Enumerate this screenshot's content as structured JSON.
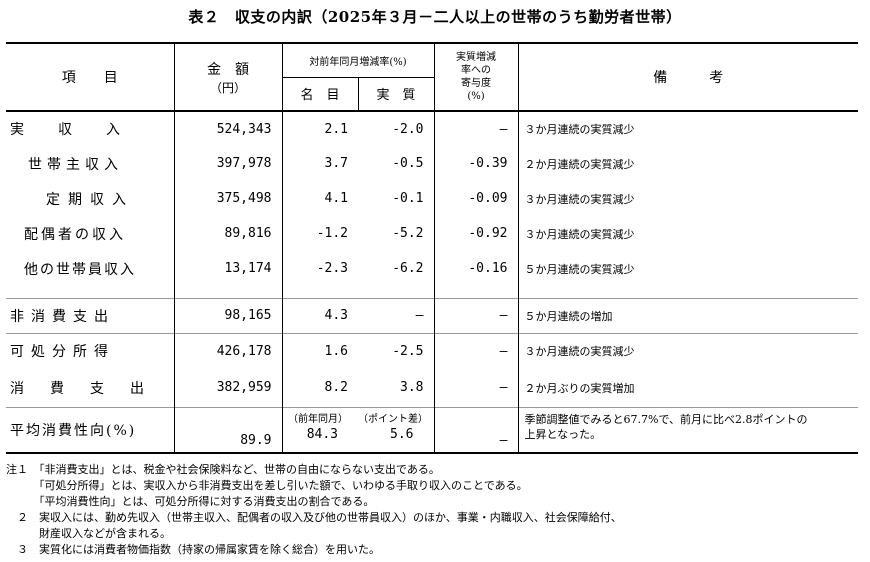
{
  "title": "表２　収支の内訳（2025年３月－二人以上の世帯のうち勤労者世帯）",
  "header": {
    "item": "項　　目",
    "amount": "金　額",
    "amount_unit": "（円）",
    "yoy": "対前年同月増減率(%)",
    "nominal": "名　目",
    "real": "実　質",
    "contrib_1": "実質増減",
    "contrib_2": "率への",
    "contrib_3": "寄与度",
    "contrib_4": "(%)",
    "remarks": "備　　　考"
  },
  "rows": [
    {
      "item": "実　　収　　入",
      "amount": "524,343",
      "nominal": "2.1",
      "real": "-2.0",
      "contrib": "—",
      "remark": "３か月連続の実質減少"
    },
    {
      "item": "世帯主収入",
      "amount": "397,978",
      "nominal": "3.7",
      "real": "-0.5",
      "contrib": "-0.39",
      "remark": "２か月連続の実質減少"
    },
    {
      "item": "定期収入",
      "amount": "375,498",
      "nominal": "4.1",
      "real": "-0.1",
      "contrib": "-0.09",
      "remark": "３か月連続の実質減少"
    },
    {
      "item": "配偶者の収入",
      "amount": "89,816",
      "nominal": "-1.2",
      "real": "-5.2",
      "contrib": "-0.92",
      "remark": "３か月連続の実質減少"
    },
    {
      "item": "他の世帯員収入",
      "amount": "13,174",
      "nominal": "-2.3",
      "real": "-6.2",
      "contrib": "-0.16",
      "remark": "５か月連続の実質減少"
    },
    {
      "item": "非消費支出",
      "amount": "98,165",
      "nominal": "4.3",
      "real": "—",
      "contrib": "—",
      "remark": "５か月連続の増加"
    },
    {
      "item": "可処分所得",
      "amount": "426,178",
      "nominal": "1.6",
      "real": "-2.5",
      "contrib": "—",
      "remark": "３か月連続の実質減少"
    },
    {
      "item": "消　費　支　出",
      "amount": "382,959",
      "nominal": "8.2",
      "real": "3.8",
      "contrib": "—",
      "remark": "２か月ぶりの実質増加"
    }
  ],
  "propensity": {
    "item": "平均消費性向(%)",
    "sub_nominal": "（前年同月）",
    "sub_real": "（ポイント差）",
    "amount": "89.9",
    "nominal": "84.3",
    "real": "5.6",
    "contrib": "—",
    "remark_1": "季節調整値でみると67.7%で、前月に比べ2.8ポイントの",
    "remark_2": "上昇となった。"
  },
  "notes": [
    "注１　「非消費支出」とは、税金や社会保険料など、世帯の自由にならない支出である。",
    "　　　「可処分所得」とは、実収入から非消費支出を差し引いた額で、いわゆる手取り収入のことである。",
    "　　　「平均消費性向」とは、可処分所得に対する消費支出の割合である。",
    "　２　実収入には、勤め先収入（世帯主収入、配偶者の収入及び他の世帯員収入）のほか、事業・内職収入、社会保障給付、",
    "　　　財産収入などが含まれる。",
    "　３　実質化には消費者物価指数（持家の帰属家賃を除く総合）を用いた。"
  ]
}
